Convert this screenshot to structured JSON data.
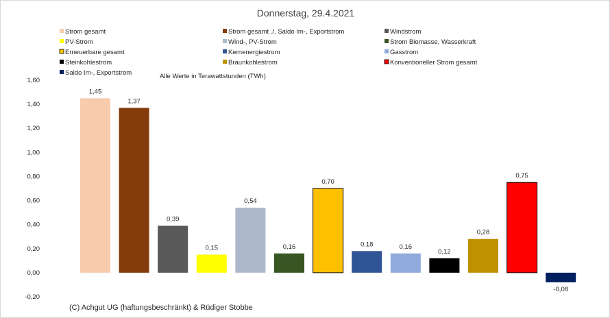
{
  "chart_data": {
    "type": "bar",
    "title": "Donnerstag, 29.4.2021",
    "unit_note": "Alle Werte in Terawattstunden (TWh)",
    "copyright": "(C) Achgut UG (haftungsbeschränkt) & Rüdiger Stobbe",
    "ylim": [
      -0.2,
      1.6
    ],
    "yticks": [
      "-0,20",
      "0,00",
      "0,20",
      "0,40",
      "0,60",
      "0,80",
      "1,00",
      "1,20",
      "1,40",
      "1,60"
    ],
    "grid": false,
    "legend_position": "top",
    "series": [
      {
        "name": "Strom gesamt",
        "value": 1.45,
        "label": "1,45",
        "color": "#f8cbad",
        "outlined": false
      },
      {
        "name": "Strom gesamt ./. Saldo Im-, Exportstrom",
        "value": 1.37,
        "label": "1,37",
        "color": "#843c0c",
        "outlined": false
      },
      {
        "name": "Windstrom",
        "value": 0.39,
        "label": "0,39",
        "color": "#595959",
        "outlined": false
      },
      {
        "name": "PV-Strom",
        "value": 0.15,
        "label": "0,15",
        "color": "#ffff00",
        "outlined": false
      },
      {
        "name": "Wind-, PV-Strom",
        "value": 0.54,
        "label": "0,54",
        "color": "#adb9ca",
        "outlined": false
      },
      {
        "name": "Strom Biomasse, Wasserkraft",
        "value": 0.16,
        "label": "0,16",
        "color": "#375623",
        "outlined": false
      },
      {
        "name": "Erneuerbare gesamt",
        "value": 0.7,
        "label": "0,70",
        "color": "#ffc000",
        "outlined": true
      },
      {
        "name": "Kernenergiestrom",
        "value": 0.18,
        "label": "0,18",
        "color": "#2f5597",
        "outlined": false
      },
      {
        "name": "Gasstrom",
        "value": 0.16,
        "label": "0,16",
        "color": "#8faadc",
        "outlined": false
      },
      {
        "name": "Steinkohlestrom",
        "value": 0.12,
        "label": "0,12",
        "color": "#000000",
        "outlined": false
      },
      {
        "name": "Braunkohlestrom",
        "value": 0.28,
        "label": "0,28",
        "color": "#bf9000",
        "outlined": false
      },
      {
        "name": "Konventioneller Strom gesamt",
        "value": 0.75,
        "label": "0,75",
        "color": "#ff0000",
        "outlined": true
      },
      {
        "name": "Saldo Im-, Exportstrom",
        "value": -0.08,
        "label": "-0,08",
        "color": "#002060",
        "outlined": false
      }
    ]
  }
}
